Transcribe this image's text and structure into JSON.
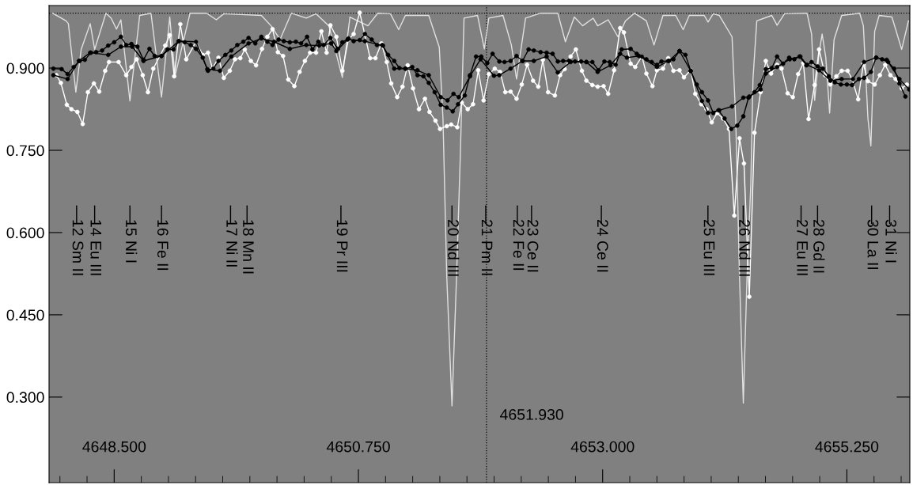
{
  "chart_data": {
    "type": "line",
    "xlim": [
      4647.9,
      4655.83
    ],
    "ylim": [
      0.144,
      1.014
    ],
    "xticks": [
      {
        "value": 4648.5,
        "label": "4648.500"
      },
      {
        "value": 4650.75,
        "label": "4650.750"
      },
      {
        "value": 4653.0,
        "label": "4653.000"
      },
      {
        "value": 4655.25,
        "label": "4655.250"
      }
    ],
    "yticks": [
      {
        "value": 0.3,
        "label": "0.300"
      },
      {
        "value": 0.45,
        "label": "0.450"
      },
      {
        "value": 0.6,
        "label": "0.600"
      },
      {
        "value": 0.75,
        "label": "0.750"
      },
      {
        "value": 0.9,
        "label": "0.900"
      }
    ],
    "grid": false,
    "legend": false,
    "ref_lines": [
      {
        "axis": "x",
        "value": 4651.93,
        "label": "4651.930",
        "line_style": "dotted",
        "color": "#000000"
      },
      {
        "axis": "y",
        "value": 1.0,
        "line_style": "dotted",
        "color": "#000000"
      }
    ],
    "series": [
      {
        "color": "#e0e0e0",
        "marker": "none",
        "line_style": "solid",
        "x": [
          4647.933,
          4648.057,
          4648.078,
          4648.147,
          4648.196,
          4648.279,
          4648.32,
          4648.424,
          4648.472,
          4648.521,
          4648.562,
          4648.645,
          4648.735,
          4648.839,
          4648.936,
          4649.012,
          4649.06,
          4649.199,
          4649.351,
          4649.441,
          4649.51,
          4649.856,
          4649.945,
          4650.028,
          4650.132,
          4650.27,
          4650.36,
          4650.478,
          4650.602,
          4650.672,
          4650.838,
          4650.928,
          4651.045,
          4651.121,
          4651.183,
          4651.398,
          4651.495,
          4651.529,
          4651.564,
          4651.612,
          4651.654,
          4651.688,
          4651.723,
          4651.847,
          4651.91,
          4651.951,
          4652.082,
          4652.159,
          4652.207,
          4652.29,
          4652.428,
          4652.587,
          4652.657,
          4652.739,
          4652.816,
          4652.912,
          4652.954,
          4653.051,
          4653.141,
          4653.21,
          4653.293,
          4653.403,
          4653.473,
          4653.556,
          4653.673,
          4653.742,
          4653.798,
          4653.936,
          4653.971,
          4654.019,
          4654.074,
          4654.192,
          4654.226,
          4654.261,
          4654.296,
          4654.33,
          4654.365,
          4654.385,
          4654.42,
          4654.558,
          4654.607,
          4654.676,
          4654.883,
          4654.925,
          4654.953,
          4654.994,
          4655.022,
          4655.056,
          4655.091,
          4655.132,
          4655.202,
          4655.368,
          4655.402,
          4655.444,
          4655.471,
          4655.506,
          4655.547,
          4655.665,
          4655.755,
          4655.817
        ],
        "values": [
          1.0,
          0.986,
          0.981,
          0.856,
          0.934,
          0.981,
          0.934,
          1.0,
          0.991,
          0.971,
          0.988,
          0.84,
          0.996,
          1.0,
          0.847,
          0.993,
          0.885,
          1.0,
          1.0,
          0.988,
          0.999,
          0.996,
          0.977,
          0.952,
          1.0,
          0.991,
          0.999,
          0.977,
          0.883,
          0.993,
          0.977,
          1.0,
          0.999,
          0.97,
          0.996,
          0.996,
          0.938,
          0.808,
          0.519,
          0.284,
          0.519,
          0.736,
          0.991,
          0.996,
          0.935,
          0.991,
          0.996,
          0.942,
          0.88,
          0.991,
          1.0,
          1.0,
          0.948,
          0.993,
          0.977,
          0.991,
          0.977,
          0.988,
          0.957,
          0.986,
          1.0,
          0.986,
          0.942,
          0.996,
          0.996,
          0.97,
          0.996,
          0.996,
          0.984,
          0.999,
          0.996,
          0.957,
          0.808,
          0.519,
          0.289,
          0.519,
          0.688,
          0.88,
          0.986,
          0.996,
          0.978,
          0.999,
          1.0,
          0.962,
          0.841,
          0.928,
          0.962,
          0.919,
          0.818,
          0.952,
          0.996,
          1.0,
          0.977,
          0.808,
          0.758,
          0.967,
          0.996,
          0.993,
          0.934,
          0.986
        ]
      },
      {
        "color": "#ffffff",
        "marker": "circle",
        "line_style": "solid",
        "x": [
          4647.967,
          4648.009,
          4648.064,
          4648.106,
          4648.161,
          4648.21,
          4648.258,
          4648.313,
          4648.362,
          4648.417,
          4648.452,
          4648.541,
          4648.611,
          4648.659,
          4648.707,
          4648.763,
          4648.811,
          4648.86,
          4648.97,
          4649.012,
          4649.053,
          4649.109,
          4649.164,
          4649.254,
          4649.316,
          4649.364,
          4649.406,
          4649.461,
          4649.51,
          4649.565,
          4649.613,
          4649.662,
          4649.703,
          4649.759,
          4649.807,
          4649.862,
          4649.911,
          4649.959,
          4650.008,
          4650.056,
          4650.104,
          4650.16,
          4650.208,
          4650.257,
          4650.305,
          4650.36,
          4650.409,
          4650.457,
          4650.492,
          4650.547,
          4650.602,
          4650.658,
          4650.706,
          4650.762,
          4650.81,
          4650.858,
          4650.907,
          4650.962,
          4651.011,
          4651.052,
          4651.107,
          4651.156,
          4651.204,
          4651.253,
          4651.308,
          4651.363,
          4651.405,
          4651.46,
          4651.502,
          4651.564,
          4651.605,
          4651.661,
          4651.702,
          4651.757,
          4651.806,
          4651.854,
          4651.903,
          4651.951,
          4652.006,
          4652.055,
          4652.103,
          4652.152,
          4652.207,
          4652.255,
          4652.304,
          4652.359,
          4652.407,
          4652.449,
          4652.497,
          4652.56,
          4652.608,
          4652.65,
          4652.705,
          4652.753,
          4652.809,
          4652.85,
          4652.905,
          4652.954,
          4653.009,
          4653.051,
          4653.106,
          4653.161,
          4653.196,
          4653.258,
          4653.3,
          4653.362,
          4653.403,
          4653.459,
          4653.5,
          4653.556,
          4653.604,
          4653.652,
          4653.708,
          4653.749,
          4653.811,
          4653.853,
          4653.908,
          4653.957,
          4654.005,
          4654.054,
          4654.109,
          4654.164,
          4654.213,
          4654.261,
          4654.302,
          4654.351,
          4654.399,
          4654.455,
          4654.503,
          4654.552,
          4654.607,
          4654.648,
          4654.704,
          4654.752,
          4654.801,
          4654.849,
          4654.897,
          4654.953,
          4654.994,
          4655.049,
          4655.098,
          4655.153,
          4655.202,
          4655.257,
          4655.298,
          4655.354,
          4655.402,
          4655.444,
          4655.506,
          4655.554,
          4655.603,
          4655.651,
          4655.699,
          4655.755,
          4655.803
        ],
        "values": [
          0.887,
          0.873,
          0.833,
          0.825,
          0.82,
          0.798,
          0.856,
          0.872,
          0.857,
          0.895,
          0.911,
          0.911,
          0.887,
          0.902,
          0.916,
          0.887,
          0.856,
          0.899,
          0.941,
          0.96,
          0.885,
          0.98,
          0.916,
          0.948,
          0.924,
          0.928,
          0.899,
          0.919,
          0.882,
          0.895,
          0.916,
          0.918,
          0.934,
          0.913,
          0.905,
          0.935,
          0.957,
          0.971,
          0.929,
          0.922,
          0.879,
          0.867,
          0.893,
          0.913,
          0.928,
          0.928,
          0.967,
          0.928,
          0.978,
          0.957,
          0.895,
          0.952,
          0.962,
          1.001,
          0.96,
          0.918,
          0.918,
          0.945,
          0.911,
          0.872,
          0.847,
          0.866,
          0.905,
          0.863,
          0.825,
          0.844,
          0.82,
          0.804,
          0.789,
          0.794,
          0.797,
          0.792,
          0.837,
          0.825,
          0.834,
          0.896,
          0.841,
          0.889,
          0.899,
          0.893,
          0.856,
          0.857,
          0.844,
          0.87,
          0.906,
          0.877,
          0.866,
          0.915,
          0.856,
          0.85,
          0.887,
          0.898,
          0.921,
          0.934,
          0.895,
          0.877,
          0.869,
          0.866,
          0.867,
          0.853,
          0.896,
          0.973,
          0.965,
          0.908,
          0.902,
          0.921,
          0.89,
          0.867,
          0.896,
          0.899,
          0.918,
          0.895,
          0.896,
          0.883,
          0.896,
          0.853,
          0.834,
          0.825,
          0.801,
          0.818,
          0.808,
          0.789,
          0.631,
          0.772,
          0.726,
          0.483,
          0.782,
          0.856,
          0.913,
          0.89,
          0.906,
          0.899,
          0.854,
          0.847,
          0.889,
          0.909,
          0.807,
          0.869,
          0.934,
          0.887,
          0.87,
          0.885,
          0.895,
          0.895,
          0.88,
          0.843,
          0.908,
          0.876,
          0.87,
          0.887,
          0.906,
          0.887,
          0.88,
          0.863,
          0.87
        ]
      },
      {
        "color": "#000000",
        "marker": "circle",
        "line_style": "solid",
        "x": [
          4647.94,
          4648.016,
          4648.071,
          4648.127,
          4648.182,
          4648.23,
          4648.286,
          4648.334,
          4648.389,
          4648.445,
          4648.5,
          4648.562,
          4648.611,
          4648.659,
          4648.714,
          4648.77,
          4648.825,
          4648.873,
          4648.936,
          4648.991,
          4649.046,
          4649.095,
          4649.15,
          4649.205,
          4649.254,
          4649.316,
          4649.364,
          4649.413,
          4649.461,
          4649.524,
          4649.579,
          4649.634,
          4649.69,
          4649.738,
          4649.8,
          4649.856,
          4649.911,
          4649.959,
          4650.015,
          4650.063,
          4650.118,
          4650.174,
          4650.222,
          4650.277,
          4650.326,
          4650.381,
          4650.43,
          4650.492,
          4650.561,
          4650.602,
          4650.658,
          4650.706,
          4650.762,
          4650.81,
          4650.872,
          4650.921,
          4650.969,
          4651.024,
          4651.08,
          4651.128,
          4651.183,
          4651.246,
          4651.294,
          4651.349,
          4651.398,
          4651.453,
          4651.508,
          4651.564,
          4651.619,
          4651.668,
          4651.73,
          4651.778,
          4651.834,
          4651.882,
          4651.937,
          4651.986,
          4652.048,
          4652.096,
          4652.152,
          4652.207,
          4652.262,
          4652.318,
          4652.366,
          4652.428,
          4652.484,
          4652.539,
          4652.587,
          4652.636,
          4652.691,
          4652.746,
          4652.802,
          4652.85,
          4652.905,
          4652.961,
          4653.016,
          4653.065,
          4653.12,
          4653.175,
          4653.258,
          4653.314,
          4653.362,
          4653.403,
          4653.452,
          4653.5,
          4653.542,
          4653.604,
          4653.652,
          4653.708,
          4653.763,
          4653.811,
          4653.867,
          4653.915,
          4653.971,
          4654.019,
          4654.067,
          4654.123,
          4654.185,
          4654.24,
          4654.296,
          4654.344,
          4654.399,
          4654.448,
          4654.503,
          4654.558,
          4654.607,
          4654.662,
          4654.718,
          4654.766,
          4654.814,
          4654.877,
          4654.925,
          4654.98,
          4655.029,
          4655.084,
          4655.139,
          4655.195,
          4655.25,
          4655.298,
          4655.361,
          4655.409,
          4655.471,
          4655.52,
          4655.575,
          4655.63,
          4655.686,
          4655.734,
          4655.789
        ],
        "values": [
          0.899,
          0.898,
          0.889,
          0.902,
          0.913,
          0.915,
          0.928,
          0.929,
          0.932,
          0.941,
          0.947,
          0.957,
          0.942,
          0.944,
          0.939,
          0.915,
          0.935,
          0.922,
          0.922,
          0.934,
          0.934,
          0.949,
          0.947,
          0.942,
          0.935,
          0.919,
          0.895,
          0.899,
          0.913,
          0.924,
          0.932,
          0.942,
          0.948,
          0.955,
          0.945,
          0.957,
          0.948,
          0.942,
          0.952,
          0.949,
          0.947,
          0.948,
          0.945,
          0.957,
          0.934,
          0.948,
          0.942,
          0.955,
          0.935,
          0.947,
          0.954,
          0.949,
          0.951,
          0.962,
          0.952,
          0.942,
          0.942,
          0.924,
          0.913,
          0.9,
          0.899,
          0.902,
          0.887,
          0.885,
          0.873,
          0.856,
          0.833,
          0.828,
          0.821,
          0.834,
          0.85,
          0.887,
          0.921,
          0.921,
          0.909,
          0.926,
          0.912,
          0.911,
          0.913,
          0.922,
          0.913,
          0.934,
          0.932,
          0.929,
          0.928,
          0.926,
          0.912,
          0.913,
          0.913,
          0.912,
          0.912,
          0.911,
          0.911,
          0.896,
          0.912,
          0.911,
          0.906,
          0.934,
          0.935,
          0.926,
          0.921,
          0.916,
          0.911,
          0.906,
          0.912,
          0.913,
          0.916,
          0.931,
          0.924,
          0.895,
          0.87,
          0.856,
          0.841,
          0.818,
          0.823,
          0.808,
          0.789,
          0.795,
          0.812,
          0.846,
          0.856,
          0.869,
          0.898,
          0.9,
          0.921,
          0.908,
          0.919,
          0.916,
          0.921,
          0.905,
          0.911,
          0.903,
          0.899,
          0.885,
          0.874,
          0.87,
          0.87,
          0.869,
          0.88,
          0.882,
          0.893,
          0.919,
          0.916,
          0.911,
          0.899,
          0.872,
          0.848
        ]
      },
      {
        "color": "#000000",
        "marker": "circle",
        "line_style": "solid",
        "x": [
          4647.94,
          4648.071,
          4648.175,
          4648.279,
          4648.445,
          4648.562,
          4648.666,
          4648.77,
          4648.936,
          4649.095,
          4649.254,
          4649.358,
          4649.475,
          4649.579,
          4649.738,
          4649.856,
          4649.973,
          4650.118,
          4650.27,
          4650.388,
          4650.499,
          4650.547,
          4650.651,
          4650.81,
          4650.976,
          4651.08,
          4651.183,
          4651.294,
          4651.398,
          4651.508,
          4651.571,
          4651.626,
          4651.674,
          4651.778,
          4651.875,
          4651.999,
          4652.048,
          4652.152,
          4652.262,
          4652.366,
          4652.484,
          4652.587,
          4652.705,
          4652.85,
          4652.954,
          4653.072,
          4653.161,
          4653.224,
          4653.334,
          4653.5,
          4653.611,
          4653.708,
          4653.811,
          4653.915,
          4653.971,
          4654.074,
          4654.192,
          4654.296,
          4654.351,
          4654.455,
          4654.503,
          4654.607,
          4654.724,
          4654.821,
          4654.883,
          4654.994,
          4655.098,
          4655.202,
          4655.305,
          4655.409,
          4655.52,
          4655.617,
          4655.734,
          4655.824
        ],
        "values": [
          0.887,
          0.88,
          0.913,
          0.928,
          0.924,
          0.939,
          0.939,
          0.913,
          0.922,
          0.949,
          0.948,
          0.898,
          0.895,
          0.921,
          0.945,
          0.954,
          0.948,
          0.935,
          0.942,
          0.941,
          0.945,
          0.931,
          0.952,
          0.949,
          0.941,
          0.899,
          0.899,
          0.896,
          0.887,
          0.847,
          0.841,
          0.853,
          0.847,
          0.885,
          0.916,
          0.886,
          0.887,
          0.899,
          0.913,
          0.913,
          0.921,
          0.892,
          0.911,
          0.911,
          0.893,
          0.905,
          0.926,
          0.919,
          0.922,
          0.902,
          0.913,
          0.931,
          0.895,
          0.84,
          0.818,
          0.823,
          0.83,
          0.846,
          0.848,
          0.861,
          0.89,
          0.902,
          0.916,
          0.921,
          0.906,
          0.896,
          0.877,
          0.88,
          0.88,
          0.911,
          0.919,
          0.915,
          0.88,
          0.861
        ]
      }
    ],
    "annotations": [
      {
        "text": "12 Sm II",
        "x": 4648.154
      },
      {
        "text": "14 Eu III",
        "x": 4648.32
      },
      {
        "text": "15 Ni I",
        "x": 4648.645
      },
      {
        "text": "16 Fe II",
        "x": 4648.936
      },
      {
        "text": "17 Ni II",
        "x": 4649.572
      },
      {
        "text": "18 Mn II",
        "x": 4649.724
      },
      {
        "text": "19 Pr III",
        "x": 4650.589
      },
      {
        "text": "20 Nd III",
        "x": 4651.612
      },
      {
        "text": "21 Pm II",
        "x": 4651.923
      },
      {
        "text": "22 Fe II",
        "x": 4652.214
      },
      {
        "text": "23 Ce II",
        "x": 4652.345
      },
      {
        "text": "24 Ce II",
        "x": 4652.988
      },
      {
        "text": "25 Eu III",
        "x": 4653.97
      },
      {
        "text": "26 Nd III",
        "x": 4654.295
      },
      {
        "text": "27 Eu III",
        "x": 4654.828
      },
      {
        "text": "28 Gd II",
        "x": 4654.98
      },
      {
        "text": "30 La II",
        "x": 4655.478
      },
      {
        "text": "31 Ni I",
        "x": 4655.644
      }
    ]
  }
}
